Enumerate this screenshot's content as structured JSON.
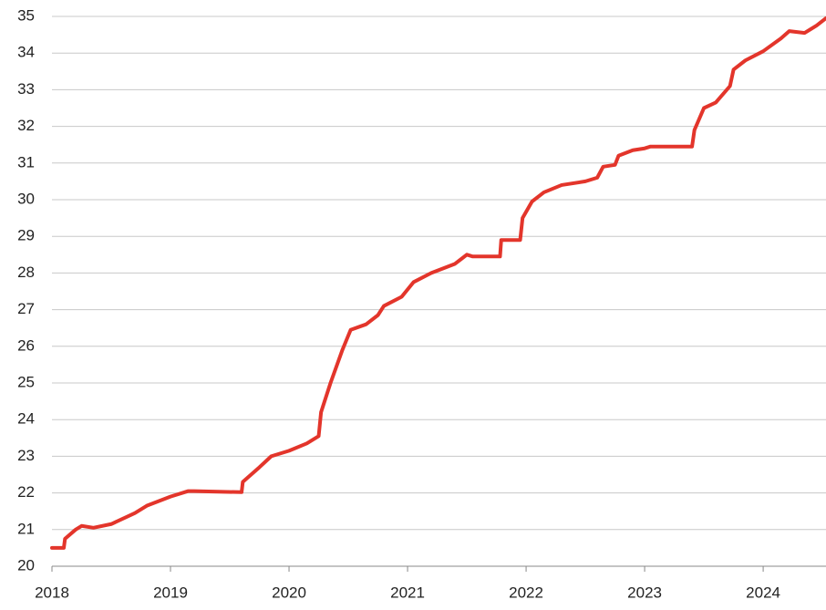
{
  "chart_data": {
    "type": "line",
    "xlim": [
      2018,
      2024.53
    ],
    "xticks": [
      2018,
      2019,
      2020,
      2021,
      2022,
      2023,
      2024
    ],
    "ylim": [
      20,
      35
    ],
    "yticks": [
      20,
      21,
      22,
      23,
      24,
      25,
      26,
      27,
      28,
      29,
      30,
      31,
      32,
      33,
      34,
      35
    ],
    "grid": true,
    "x": [
      2018.0,
      2018.1,
      2018.11,
      2018.2,
      2018.25,
      2018.35,
      2018.5,
      2018.7,
      2018.8,
      2019.0,
      2019.15,
      2019.2,
      2019.6,
      2019.61,
      2019.75,
      2019.85,
      2020.0,
      2020.15,
      2020.25,
      2020.27,
      2020.35,
      2020.45,
      2020.52,
      2020.65,
      2020.75,
      2020.8,
      2020.95,
      2021.05,
      2021.2,
      2021.4,
      2021.5,
      2021.55,
      2021.78,
      2021.79,
      2021.95,
      2021.97,
      2022.05,
      2022.15,
      2022.3,
      2022.5,
      2022.6,
      2022.65,
      2022.75,
      2022.78,
      2022.9,
      2023.0,
      2023.05,
      2023.4,
      2023.42,
      2023.5,
      2023.6,
      2023.72,
      2023.75,
      2023.85,
      2024.0,
      2024.15,
      2024.22,
      2024.35,
      2024.45,
      2024.53
    ],
    "series": [
      {
        "color": "#e3352b",
        "values": [
          20.5,
          20.5,
          20.75,
          21.0,
          21.1,
          21.05,
          21.15,
          21.45,
          21.65,
          21.9,
          22.05,
          22.05,
          22.02,
          22.3,
          22.7,
          23.0,
          23.15,
          23.35,
          23.55,
          24.2,
          25.0,
          25.9,
          26.45,
          26.6,
          26.85,
          27.1,
          27.35,
          27.75,
          28.0,
          28.25,
          28.5,
          28.45,
          28.45,
          28.9,
          28.9,
          29.5,
          29.95,
          30.2,
          30.4,
          30.5,
          30.6,
          30.9,
          30.95,
          31.2,
          31.35,
          31.4,
          31.45,
          31.45,
          31.9,
          32.5,
          32.65,
          33.1,
          33.55,
          33.8,
          34.05,
          34.4,
          34.6,
          34.55,
          34.75,
          34.95
        ]
      }
    ]
  }
}
